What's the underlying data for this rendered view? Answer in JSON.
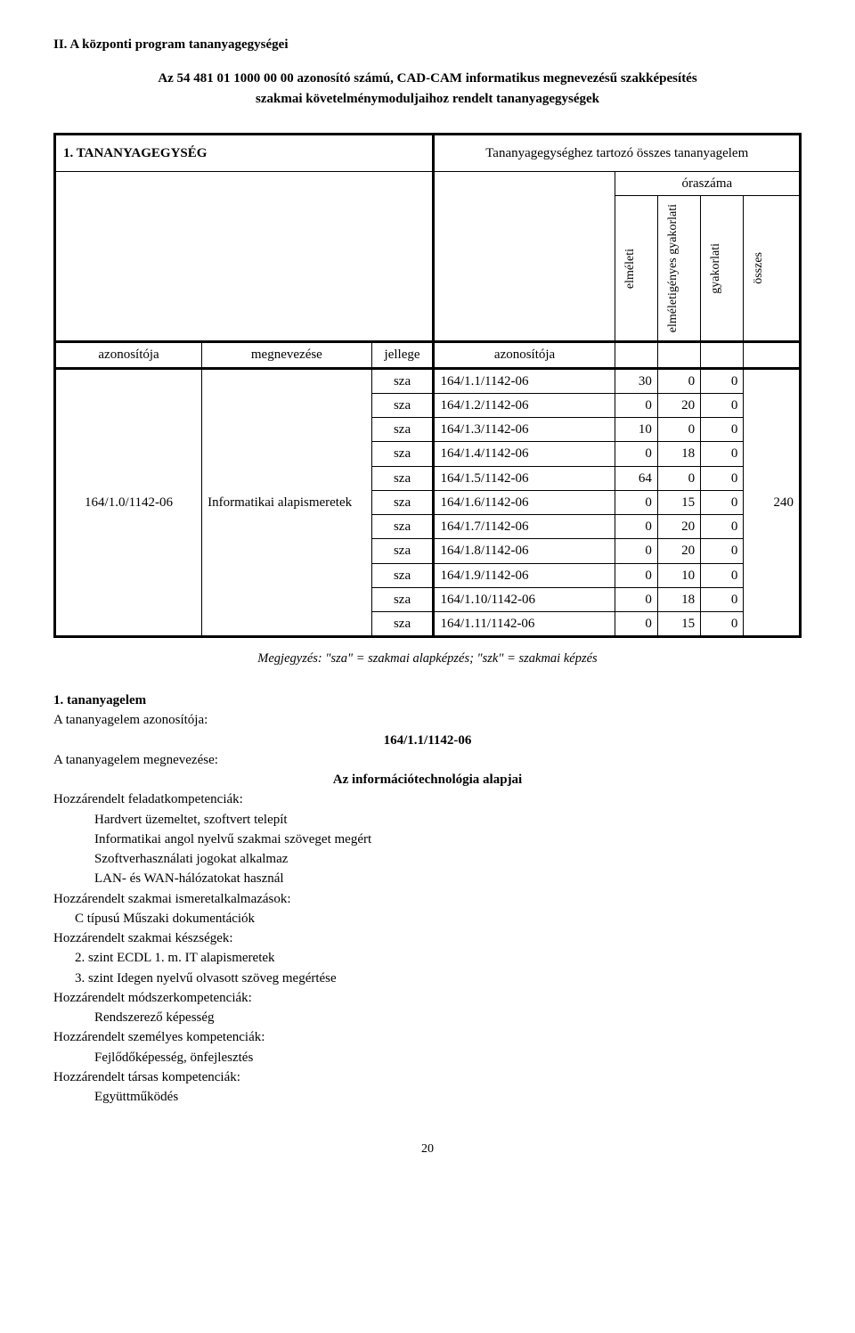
{
  "section_title": "II. A központi program tananyagegységei",
  "intro": {
    "line1": "Az 54 481 01 1000 00 00 azonosító számú, CAD-CAM informatikus megnevezésű szakképesítés",
    "line2": "szakmai követelménymoduljaihoz rendelt tananyagegységek"
  },
  "table": {
    "header_left": "1. TANANYAGEGYSÉG",
    "header_right_top": "Tananyagegységhez tartozó összes tananyagelem",
    "header_right_sub": "óraszáma",
    "cols": {
      "azon": "azonosítója",
      "megnev": "megnevezése",
      "jellege": "jellege",
      "azon2": "azonosítója",
      "elmeleti": "elméleti",
      "elm_ig": "elméletigényes gyakorlati",
      "gyak": "gyakorlati",
      "osszes": "összes"
    },
    "group": {
      "azon": "164/1.0/1142-06",
      "megnev": "Informatikai alapismeretek",
      "osszes": "240"
    },
    "rows": [
      {
        "j": "sza",
        "a": "164/1.1/1142-06",
        "e": "30",
        "ei": "0",
        "g": "0"
      },
      {
        "j": "sza",
        "a": "164/1.2/1142-06",
        "e": "0",
        "ei": "20",
        "g": "0"
      },
      {
        "j": "sza",
        "a": "164/1.3/1142-06",
        "e": "10",
        "ei": "0",
        "g": "0"
      },
      {
        "j": "sza",
        "a": "164/1.4/1142-06",
        "e": "0",
        "ei": "18",
        "g": "0"
      },
      {
        "j": "sza",
        "a": "164/1.5/1142-06",
        "e": "64",
        "ei": "0",
        "g": "0"
      },
      {
        "j": "sza",
        "a": "164/1.6/1142-06",
        "e": "0",
        "ei": "15",
        "g": "0"
      },
      {
        "j": "sza",
        "a": "164/1.7/1142-06",
        "e": "0",
        "ei": "20",
        "g": "0"
      },
      {
        "j": "sza",
        "a": "164/1.8/1142-06",
        "e": "0",
        "ei": "20",
        "g": "0"
      },
      {
        "j": "sza",
        "a": "164/1.9/1142-06",
        "e": "0",
        "ei": "10",
        "g": "0"
      },
      {
        "j": "sza",
        "a": "164/1.10/1142-06",
        "e": "0",
        "ei": "18",
        "g": "0"
      },
      {
        "j": "sza",
        "a": "164/1.11/1142-06",
        "e": "0",
        "ei": "15",
        "g": "0"
      }
    ]
  },
  "note": "Megjegyzés: \"sza\" = szakmai alapképzés; \"szk\" = szakmai képzés",
  "block": {
    "h1": "1. tananyagelem",
    "l1": "A tananyagelem azonosítója:",
    "code": "164/1.1/1142-06",
    "l2": "A tananyagelem megnevezése:",
    "name": "Az információtechnológia alapjai",
    "l3": "Hozzárendelt feladatkompetenciák:",
    "l3a": "Hardvert üzemeltet, szoftvert telepít",
    "l3b": "Informatikai angol nyelvű szakmai szöveget megért",
    "l3c": "Szoftverhasználati jogokat alkalmaz",
    "l3d": "LAN- és WAN-hálózatokat használ",
    "l4": "Hozzárendelt szakmai ismeretalkalmazások:",
    "l4a": "C típusú  Műszaki dokumentációk",
    "l5": "Hozzárendelt szakmai készségek:",
    "l5a": "2. szint  ECDL 1. m. IT alapismeretek",
    "l5b": "3. szint  Idegen nyelvű olvasott szöveg megértése",
    "l6": "Hozzárendelt módszerkompetenciák:",
    "l6a": "Rendszerező képesség",
    "l7": "Hozzárendelt személyes kompetenciák:",
    "l7a": "Fejlődőképesség, önfejlesztés",
    "l8": "Hozzárendelt társas kompetenciák:",
    "l8a": "Együttműködés"
  },
  "page": "20"
}
